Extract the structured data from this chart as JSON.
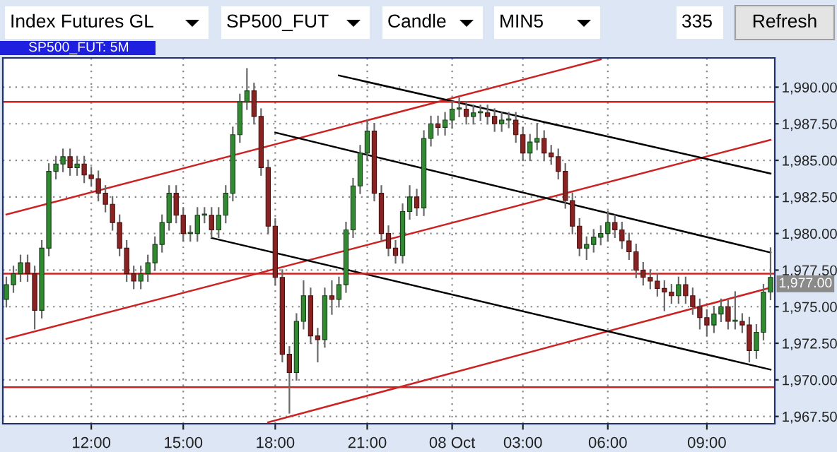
{
  "chart_data": {
    "type": "candlestick",
    "title": "SP500_FUT: 5M",
    "annotations": [
      "Index Futures GL",
      "SP500_FUT",
      "Candle",
      "MIN5",
      "335",
      "Refresh",
      "1,977.00"
    ],
    "ylim": [
      1967,
      1992
    ],
    "yticks": [
      {
        "value": 1967.5,
        "label": "1,967.50"
      },
      {
        "value": 1970,
        "label": "1,970.00"
      },
      {
        "value": 1972.5,
        "label": "1,972.50"
      },
      {
        "value": 1975,
        "label": "1,975.00"
      },
      {
        "value": 1977.5,
        "label": "1,977.50"
      },
      {
        "value": 1980,
        "label": "1,980.00"
      },
      {
        "value": 1982.5,
        "label": "1,982.50"
      },
      {
        "value": 1985,
        "label": "1,985.00"
      },
      {
        "value": 1987.5,
        "label": "1,987.50"
      },
      {
        "value": 1990,
        "label": "1,990.00"
      }
    ],
    "grid": true,
    "categories": [
      null,
      null,
      null,
      null,
      null,
      null,
      null,
      null,
      null,
      null,
      null,
      null,
      "12:00",
      null,
      null,
      null,
      null,
      null,
      null,
      null,
      null,
      null,
      null,
      null,
      null,
      "15:00",
      null,
      null,
      null,
      null,
      null,
      null,
      null,
      null,
      null,
      null,
      null,
      null,
      "18:00",
      null,
      null,
      null,
      null,
      null,
      null,
      null,
      null,
      null,
      null,
      null,
      null,
      "21:00",
      null,
      null,
      null,
      null,
      null,
      null,
      null,
      null,
      null,
      null,
      null,
      "08 Oct",
      null,
      null,
      null,
      null,
      null,
      null,
      null,
      null,
      null,
      "03:00",
      null,
      null,
      null,
      null,
      null,
      null,
      null,
      null,
      null,
      null,
      null,
      "06:00",
      null,
      null,
      null,
      null,
      null,
      null,
      null,
      null,
      null,
      null,
      null,
      null,
      null,
      "09:00",
      null,
      null,
      null,
      null,
      null,
      null,
      null,
      null,
      null
    ],
    "ohlc": [
      [
        1975.5,
        1977,
        1975,
        1976.5
      ],
      [
        1976.5,
        1977.75,
        1976,
        1977.25
      ],
      [
        1977.25,
        1978.5,
        1976.75,
        1978
      ],
      [
        1978,
        1978.5,
        1976.75,
        1977.25
      ],
      [
        1977.25,
        1977.75,
        1973.5,
        1974.75
      ],
      [
        1974.75,
        1979.5,
        1974.25,
        1979
      ],
      [
        1979,
        1984.75,
        1978.5,
        1984.25
      ],
      [
        1984.25,
        1985.25,
        1983.75,
        1984.75
      ],
      [
        1984.75,
        1985.75,
        1984.25,
        1985.25
      ],
      [
        1985.25,
        1985.75,
        1984,
        1984.5
      ],
      [
        1984.5,
        1985.25,
        1984,
        1984.75
      ],
      [
        1984.75,
        1985.25,
        1983.5,
        1984
      ],
      [
        1984,
        1984.5,
        1983.25,
        1983.75
      ],
      [
        1983.75,
        1984.25,
        1982.25,
        1982.75
      ],
      [
        1982.75,
        1983.25,
        1981.5,
        1982
      ],
      [
        1982,
        1982.5,
        1980.25,
        1980.75
      ],
      [
        1980.75,
        1981.25,
        1978.5,
        1979
      ],
      [
        1979,
        1979.5,
        1976.75,
        1977.25
      ],
      [
        1977.25,
        1977.75,
        1976.25,
        1976.75
      ],
      [
        1976.75,
        1977.75,
        1976.25,
        1977.25
      ],
      [
        1977.25,
        1978.5,
        1976.75,
        1978
      ],
      [
        1978,
        1979.75,
        1977.5,
        1979.25
      ],
      [
        1979.25,
        1981.25,
        1978.75,
        1980.75
      ],
      [
        1980.75,
        1983.25,
        1980.25,
        1982.75
      ],
      [
        1982.75,
        1983.25,
        1980.75,
        1981.25
      ],
      [
        1981.25,
        1981.75,
        1979.5,
        1980
      ],
      [
        1980,
        1980.5,
        1979.5,
        1980
      ],
      [
        1980,
        1981.75,
        1979.5,
        1981.25
      ],
      [
        1981.25,
        1981.75,
        1980.75,
        1981.25
      ],
      [
        1981.25,
        1981.75,
        1979.75,
        1980.25
      ],
      [
        1980.25,
        1981.75,
        1979.75,
        1981.25
      ],
      [
        1981.25,
        1983.25,
        1980.75,
        1982.75
      ],
      [
        1982.75,
        1987.25,
        1982.25,
        1986.75
      ],
      [
        1986.75,
        1989.5,
        1986.25,
        1989
      ],
      [
        1989,
        1991.25,
        1988.5,
        1989.75
      ],
      [
        1989.75,
        1990.25,
        1987.5,
        1988
      ],
      [
        1988,
        1988.5,
        1984,
        1984.5
      ],
      [
        1984.5,
        1985,
        1980,
        1980.5
      ],
      [
        1980.5,
        1981,
        1976.5,
        1977
      ],
      [
        1977,
        1977.5,
        1971.25,
        1971.75
      ],
      [
        1971.75,
        1972.25,
        1967.75,
        1970.5
      ],
      [
        1970.5,
        1974.5,
        1970,
        1974
      ],
      [
        1974,
        1976.75,
        1973.5,
        1975.75
      ],
      [
        1975.75,
        1976.25,
        1972.5,
        1973
      ],
      [
        1973,
        1973.5,
        1971.25,
        1972.75
      ],
      [
        1972.75,
        1976.25,
        1972.25,
        1975.75
      ],
      [
        1975.75,
        1976.75,
        1974.5,
        1975.5
      ],
      [
        1975.5,
        1977,
        1975,
        1976.5
      ],
      [
        1976.5,
        1980.75,
        1976,
        1980.25
      ],
      [
        1980.25,
        1983.75,
        1979.75,
        1983.25
      ],
      [
        1983.25,
        1986,
        1982.75,
        1985.5
      ],
      [
        1985.5,
        1987.75,
        1985,
        1987
      ],
      [
        1987,
        1987.5,
        1982.25,
        1982.75
      ],
      [
        1982.75,
        1983.25,
        1979.5,
        1980
      ],
      [
        1980,
        1980.5,
        1978.5,
        1979
      ],
      [
        1979,
        1979.5,
        1978,
        1978.5
      ],
      [
        1978.5,
        1982,
        1978,
        1981.5
      ],
      [
        1981.5,
        1983.25,
        1981,
        1982.5
      ],
      [
        1982.5,
        1983,
        1981.25,
        1981.75
      ],
      [
        1981.75,
        1987,
        1981.25,
        1986.5
      ],
      [
        1986.5,
        1988,
        1986,
        1987.5
      ],
      [
        1987.5,
        1988,
        1986.75,
        1987.25
      ],
      [
        1987.25,
        1988.25,
        1986.75,
        1987.75
      ],
      [
        1987.75,
        1989,
        1987.25,
        1988.5
      ],
      [
        1988.5,
        1989.25,
        1988,
        1988.5
      ],
      [
        1988.5,
        1989,
        1987.5,
        1988
      ],
      [
        1988,
        1988.75,
        1987.5,
        1988.25
      ],
      [
        1988.25,
        1988.75,
        1987.75,
        1988.25
      ],
      [
        1988.25,
        1988.75,
        1987.5,
        1988
      ],
      [
        1988,
        1988.5,
        1987,
        1987.5
      ],
      [
        1987.5,
        1988.25,
        1987,
        1987.75
      ],
      [
        1987.75,
        1988.25,
        1987.25,
        1987.75
      ],
      [
        1987.75,
        1988.25,
        1986.25,
        1986.75
      ],
      [
        1986.75,
        1987.25,
        1985,
        1985.5
      ],
      [
        1985.5,
        1986.75,
        1985,
        1986.25
      ],
      [
        1986.25,
        1987.5,
        1985.75,
        1986.5
      ],
      [
        1986.5,
        1987,
        1985,
        1985.5
      ],
      [
        1985.5,
        1986,
        1984.75,
        1985.25
      ],
      [
        1985.25,
        1985.75,
        1983.75,
        1984.25
      ],
      [
        1984.25,
        1984.75,
        1981.75,
        1982.25
      ],
      [
        1982.25,
        1982.75,
        1980,
        1980.5
      ],
      [
        1980.5,
        1981,
        1978.5,
        1979
      ],
      [
        1979,
        1979.75,
        1978.25,
        1979.25
      ],
      [
        1979.25,
        1980.25,
        1978.75,
        1979.75
      ],
      [
        1979.75,
        1980.5,
        1979.25,
        1980
      ],
      [
        1980,
        1981.5,
        1979.5,
        1980.75
      ],
      [
        1980.75,
        1981.25,
        1979.75,
        1980.25
      ],
      [
        1980.25,
        1980.75,
        1979,
        1979.5
      ],
      [
        1979.5,
        1980,
        1978.25,
        1978.75
      ],
      [
        1978.75,
        1979.25,
        1977,
        1977.5
      ],
      [
        1977.5,
        1978,
        1976.5,
        1977
      ],
      [
        1977,
        1977.5,
        1976.25,
        1976.75
      ],
      [
        1976.75,
        1977.25,
        1975.75,
        1976.25
      ],
      [
        1976.25,
        1976.75,
        1974.75,
        1976
      ],
      [
        1976,
        1976.5,
        1975.25,
        1975.75
      ],
      [
        1975.75,
        1977,
        1975.25,
        1976.5
      ],
      [
        1976.5,
        1977,
        1975.25,
        1975.75
      ],
      [
        1975.75,
        1976.25,
        1974.5,
        1975
      ],
      [
        1975,
        1975.5,
        1973.5,
        1974.25
      ],
      [
        1974.25,
        1974.75,
        1973,
        1973.75
      ],
      [
        1973.75,
        1975,
        1973.25,
        1974.5
      ],
      [
        1974.5,
        1975.5,
        1974,
        1975
      ],
      [
        1975,
        1975.5,
        1973.5,
        1974
      ],
      [
        1974,
        1976,
        1973.5,
        1974
      ],
      [
        1974,
        1974.5,
        1973.25,
        1973.75
      ],
      [
        1973.75,
        1974.25,
        1971.25,
        1972
      ],
      [
        1972,
        1973.75,
        1971.5,
        1973.25
      ],
      [
        1973.25,
        1976.5,
        1972.75,
        1976
      ],
      [
        1976,
        1979,
        1975.5,
        1977
      ]
    ],
    "series": [
      {
        "type": "line",
        "color": "#cc2222",
        "values": [
          1981.3,
          null,
          null,
          null,
          null,
          null,
          null,
          null,
          null,
          null,
          null,
          null,
          null,
          null,
          null,
          null,
          null,
          null,
          null,
          null,
          null,
          null,
          null,
          null,
          null,
          null,
          null,
          null,
          null,
          null,
          null,
          null,
          null,
          null,
          null,
          null,
          null,
          null,
          null,
          null,
          null,
          null,
          null,
          null,
          null,
          null,
          null,
          null,
          null,
          null,
          null,
          null,
          null,
          null,
          null,
          null,
          null,
          null,
          null,
          null,
          null,
          null,
          null,
          null,
          null,
          null,
          null,
          null,
          null,
          null,
          null,
          null,
          null,
          null,
          null,
          null,
          null,
          null,
          null,
          null,
          null,
          null,
          null,
          null,
          1991.9,
          null,
          null,
          null,
          null,
          null,
          null,
          null,
          null,
          null,
          null,
          null,
          null,
          null,
          null,
          null,
          null,
          null,
          null,
          null,
          null,
          null,
          null,
          null,
          null
        ]
      },
      {
        "type": "line",
        "color": "#cc2222",
        "values": [
          1972.8,
          null,
          null,
          null,
          null,
          null,
          null,
          null,
          null,
          null,
          null,
          null,
          null,
          null,
          null,
          null,
          null,
          null,
          null,
          null,
          null,
          null,
          null,
          null,
          null,
          null,
          null,
          null,
          null,
          null,
          null,
          null,
          null,
          null,
          null,
          null,
          null,
          null,
          null,
          null,
          null,
          null,
          null,
          null,
          null,
          null,
          null,
          null,
          null,
          null,
          null,
          null,
          null,
          null,
          null,
          null,
          null,
          null,
          null,
          null,
          null,
          null,
          null,
          null,
          null,
          null,
          null,
          null,
          null,
          null,
          null,
          null,
          null,
          null,
          null,
          null,
          null,
          null,
          null,
          null,
          null,
          null,
          null,
          null,
          null,
          null,
          null,
          null,
          null,
          null,
          null,
          null,
          null,
          null,
          null,
          null,
          null,
          null,
          null,
          null,
          null,
          null,
          null,
          null,
          null,
          null,
          null,
          null,
          1986.4
        ]
      },
      {
        "type": "line",
        "color": "#cc2222",
        "values": [
          null,
          null,
          null,
          null,
          null,
          null,
          null,
          null,
          null,
          null,
          null,
          null,
          null,
          null,
          null,
          null,
          null,
          null,
          null,
          null,
          null,
          null,
          null,
          null,
          null,
          null,
          null,
          null,
          null,
          null,
          null,
          null,
          null,
          null,
          null,
          null,
          null,
          1967.1,
          null,
          null,
          null,
          null,
          null,
          null,
          null,
          null,
          null,
          null,
          null,
          null,
          null,
          null,
          null,
          null,
          null,
          null,
          null,
          null,
          null,
          null,
          null,
          null,
          null,
          null,
          null,
          null,
          null,
          null,
          null,
          null,
          null,
          null,
          null,
          null,
          null,
          null,
          null,
          null,
          null,
          null,
          null,
          null,
          null,
          null,
          null,
          null,
          null,
          null,
          null,
          null,
          null,
          null,
          null,
          null,
          null,
          null,
          null,
          null,
          null,
          null,
          null,
          null,
          null,
          null,
          null,
          null,
          null,
          null,
          1976.3
        ]
      },
      {
        "type": "line",
        "color": "#000000",
        "values": [
          null,
          null,
          null,
          null,
          null,
          null,
          null,
          null,
          null,
          null,
          null,
          null,
          null,
          null,
          null,
          null,
          null,
          null,
          null,
          null,
          null,
          null,
          null,
          null,
          null,
          null,
          null,
          null,
          null,
          null,
          null,
          null,
          null,
          null,
          null,
          null,
          null,
          null,
          null,
          null,
          null,
          null,
          null,
          null,
          null,
          null,
          null,
          1990.8,
          null,
          null,
          null,
          null,
          null,
          null,
          null,
          null,
          null,
          null,
          null,
          null,
          null,
          null,
          null,
          null,
          null,
          null,
          null,
          null,
          null,
          null,
          null,
          null,
          null,
          null,
          null,
          null,
          null,
          null,
          null,
          null,
          null,
          null,
          null,
          null,
          null,
          null,
          null,
          null,
          null,
          null,
          null,
          null,
          null,
          null,
          null,
          null,
          null,
          null,
          null,
          null,
          null,
          null,
          null,
          null,
          null,
          null,
          null,
          null,
          1984.1
        ]
      },
      {
        "type": "line",
        "color": "#000000",
        "values": [
          null,
          null,
          null,
          null,
          null,
          null,
          null,
          null,
          null,
          null,
          null,
          null,
          null,
          null,
          null,
          null,
          null,
          null,
          null,
          null,
          null,
          null,
          null,
          null,
          null,
          null,
          null,
          null,
          null,
          null,
          null,
          null,
          null,
          null,
          null,
          null,
          null,
          null,
          1986.9,
          null,
          null,
          null,
          null,
          null,
          null,
          null,
          null,
          null,
          null,
          null,
          null,
          null,
          null,
          null,
          null,
          null,
          null,
          null,
          null,
          null,
          null,
          null,
          null,
          null,
          null,
          null,
          null,
          null,
          null,
          null,
          null,
          null,
          null,
          null,
          null,
          null,
          null,
          null,
          null,
          null,
          null,
          null,
          null,
          null,
          null,
          null,
          null,
          null,
          null,
          null,
          null,
          null,
          null,
          null,
          null,
          null,
          null,
          null,
          null,
          null,
          null,
          null,
          null,
          null,
          null,
          null,
          null,
          null,
          1978.7
        ]
      },
      {
        "type": "line",
        "color": "#000000",
        "values": [
          null,
          null,
          null,
          null,
          null,
          null,
          null,
          null,
          null,
          null,
          null,
          null,
          null,
          null,
          null,
          null,
          null,
          null,
          null,
          null,
          null,
          null,
          null,
          null,
          null,
          null,
          null,
          null,
          null,
          1979.7,
          null,
          null,
          null,
          null,
          null,
          null,
          null,
          null,
          null,
          null,
          null,
          null,
          null,
          null,
          null,
          null,
          null,
          null,
          null,
          null,
          null,
          null,
          null,
          null,
          null,
          null,
          null,
          null,
          null,
          null,
          null,
          null,
          null,
          null,
          null,
          null,
          null,
          null,
          null,
          null,
          null,
          null,
          null,
          null,
          null,
          null,
          null,
          null,
          null,
          null,
          null,
          null,
          null,
          null,
          null,
          null,
          null,
          null,
          null,
          null,
          null,
          null,
          null,
          null,
          null,
          null,
          null,
          null,
          null,
          null,
          null,
          null,
          null,
          null,
          null,
          null,
          null,
          null,
          1970.7
        ]
      }
    ],
    "ref_lines": [
      {
        "axis": "y",
        "value": 1989,
        "color": "#cc2222"
      },
      {
        "axis": "y",
        "value": 1977.25,
        "color": "#cc2222"
      },
      {
        "axis": "y",
        "value": 1969.5,
        "color": "#cc2222"
      }
    ]
  }
}
